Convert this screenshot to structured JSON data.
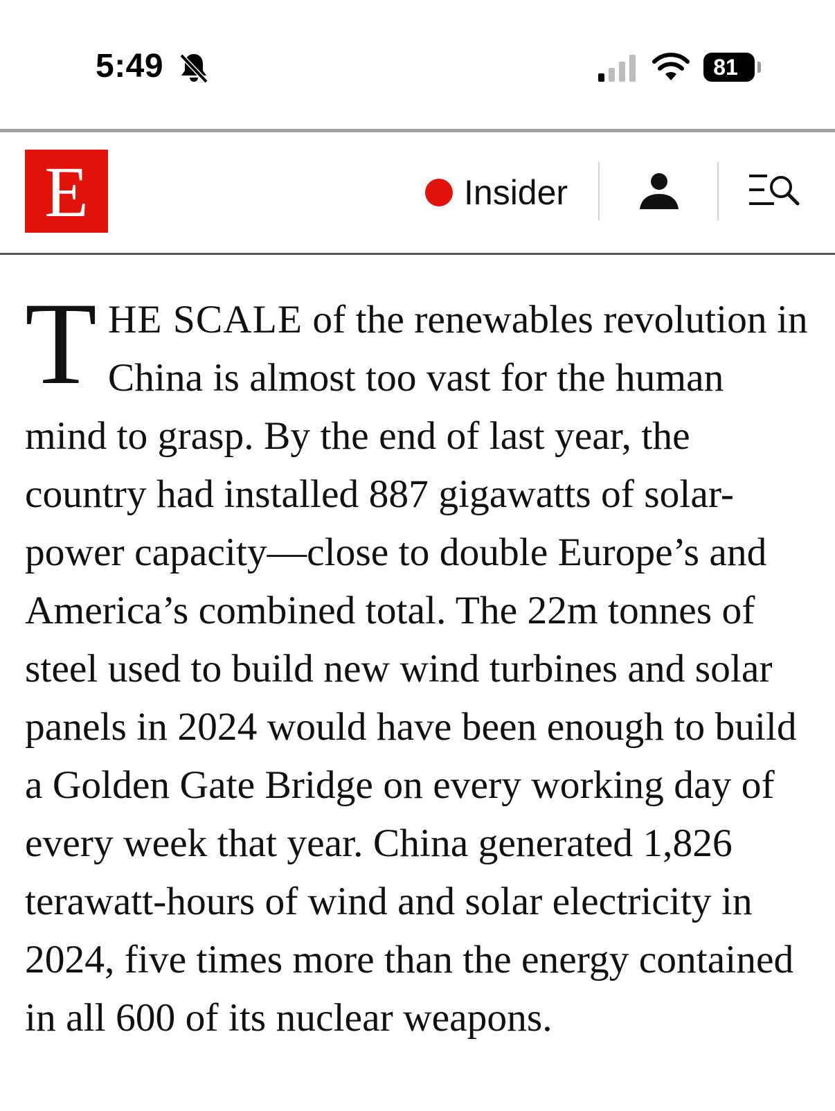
{
  "status_bar": {
    "time": "5:49",
    "battery": "81",
    "icons": [
      "bell-slash-icon",
      "cellular-signal-icon",
      "wifi-icon",
      "battery-icon"
    ]
  },
  "header": {
    "logo_letter": "E",
    "insider_label": "Insider",
    "brand_color": "#e3120b",
    "icons": [
      "account-icon",
      "menu-search-icon"
    ]
  },
  "article": {
    "drop_cap": "T",
    "lead_smallcaps": "HE SCALE",
    "body": " of the renewables revolution in China is almost too vast for the human mind to grasp. By the end of last year, the country had installed 887 gigawatts of solar-power capacity—close to double Europe’s and America’s combined total. The 22m tonnes of steel used to build new wind turbines and solar panels in 2024 would have been enough to build a Golden Gate Bridge on every working day of every week that year. China generated 1,826 terawatt-hours of wind and solar electricity in 2024, five times more than the energy contained in all 600 of its nuclear weapons."
  }
}
